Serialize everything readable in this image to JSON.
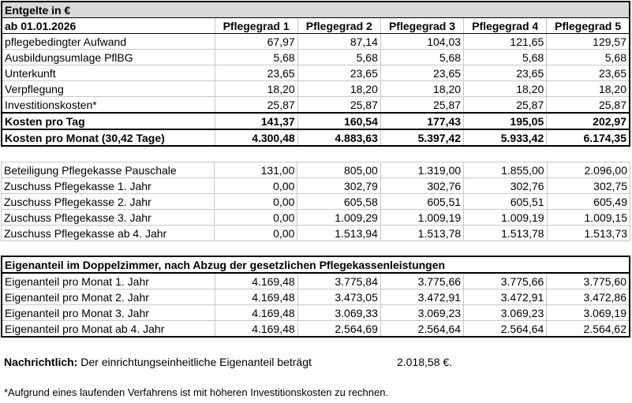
{
  "table1": {
    "title": "Entgelte in €",
    "date_label": "ab 01.01.2026",
    "grades": [
      "Pflegegrad 1",
      "Pflegegrad 2",
      "Pflegegrad 3",
      "Pflegegrad 4",
      "Pflegegrad 5"
    ],
    "rows": [
      {
        "label": "pflegebedingter Aufwand",
        "values": [
          "67,97",
          "87,14",
          "104,03",
          "121,65",
          "129,57"
        ]
      },
      {
        "label": "Ausbildungsumlage PflBG",
        "values": [
          "5,68",
          "5,68",
          "5,68",
          "5,68",
          "5,68"
        ]
      },
      {
        "label": "Unterkunft",
        "values": [
          "23,65",
          "23,65",
          "23,65",
          "23,65",
          "23,65"
        ]
      },
      {
        "label": "Verpflegung",
        "values": [
          "18,20",
          "18,20",
          "18,20",
          "18,20",
          "18,20"
        ]
      },
      {
        "label": "Investitionskosten*",
        "values": [
          "25,87",
          "25,87",
          "25,87",
          "25,87",
          "25,87"
        ]
      }
    ],
    "per_day": {
      "label": "Kosten pro Tag",
      "values": [
        "141,37",
        "160,54",
        "177,43",
        "195,05",
        "202,97"
      ]
    },
    "per_month": {
      "label": "Kosten pro Monat (30,42 Tage)",
      "values": [
        "4.300,48",
        "4.883,63",
        "5.397,42",
        "5.933,42",
        "6.174,35"
      ]
    }
  },
  "table2": {
    "rows": [
      {
        "label": "Beteiligung Pflegekasse Pauschale",
        "values": [
          "131,00",
          "805,00",
          "1.319,00",
          "1.855,00",
          "2.096,00"
        ]
      },
      {
        "label": "Zuschuss Pflegekasse 1. Jahr",
        "values": [
          "0,00",
          "302,79",
          "302,76",
          "302,76",
          "302,75"
        ]
      },
      {
        "label": "Zuschuss Pflegekasse 2. Jahr",
        "values": [
          "0,00",
          "605,58",
          "605,51",
          "605,51",
          "605,49"
        ]
      },
      {
        "label": "Zuschuss Pflegekasse 3. Jahr",
        "values": [
          "0,00",
          "1.009,29",
          "1.009,19",
          "1.009,19",
          "1.009,15"
        ]
      },
      {
        "label": "Zuschuss Pflegekasse ab 4. Jahr",
        "values": [
          "0,00",
          "1.513,94",
          "1.513,78",
          "1.513,78",
          "1.513,73"
        ]
      }
    ]
  },
  "table3": {
    "title": "Eigenanteil im Doppelzimmer, nach Abzug der gesetzlichen Pflegekassenleistungen",
    "rows": [
      {
        "label": "Eigenanteil pro Monat 1. Jahr",
        "values": [
          "4.169,48",
          "3.775,84",
          "3.775,66",
          "3.775,66",
          "3.775,60"
        ]
      },
      {
        "label": "Eigenanteil pro Monat 2. Jahr",
        "values": [
          "4.169,48",
          "3.473,05",
          "3.472,91",
          "3.472,91",
          "3.472,86"
        ]
      },
      {
        "label": "Eigenanteil pro Monat 3. Jahr",
        "values": [
          "4.169,48",
          "3.069,33",
          "3.069,23",
          "3.069,23",
          "3.069,19"
        ]
      },
      {
        "label": "Eigenanteil pro Monat ab 4. Jahr",
        "values": [
          "4.169,48",
          "2.564,69",
          "2.564,64",
          "2.564,64",
          "2.564,62"
        ]
      }
    ]
  },
  "note": {
    "label": "Nachrichtlich:",
    "text": "Der einrichtungseinheitliche Eigenanteil beträgt",
    "value": "2.018,58 €."
  },
  "footnote": "*Aufgrund eines laufenden Verfahrens ist mit höheren Investitionskosten zu rechnen."
}
